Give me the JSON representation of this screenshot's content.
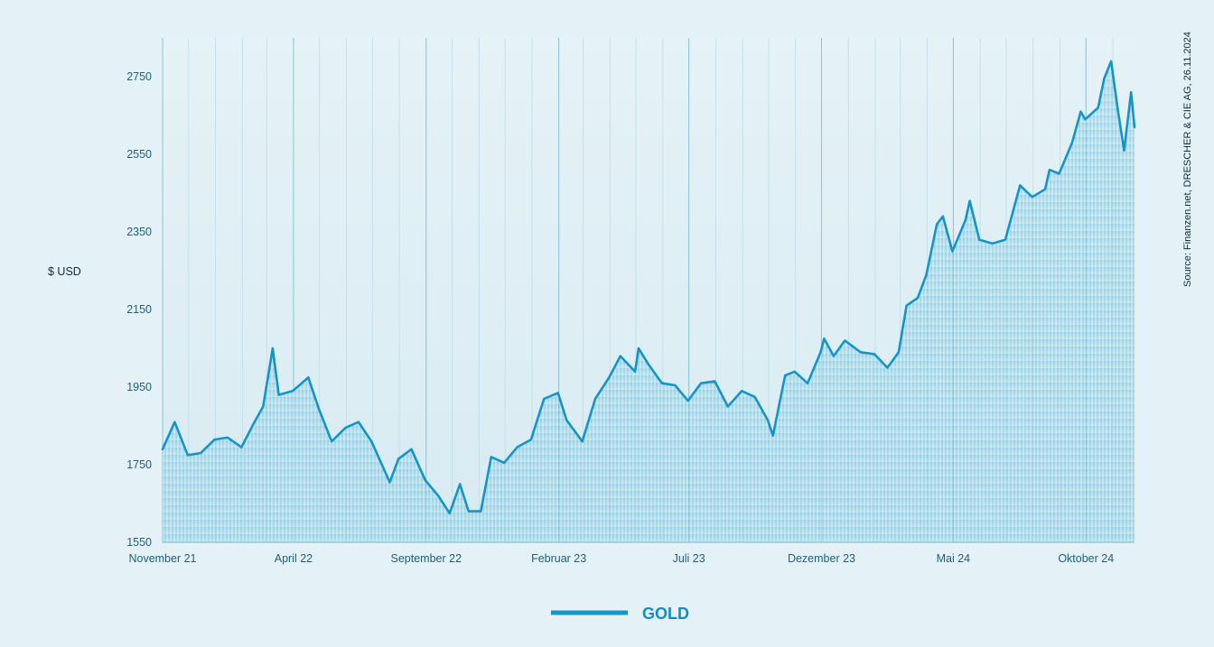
{
  "chart_data": {
    "type": "area",
    "ylabel": "$ USD",
    "source": "Source: Finanzen.net, DRESCHER & CIE AG, 26.11.2024",
    "ylim": [
      1550,
      2850
    ],
    "yticks": [
      1550,
      1750,
      1950,
      2150,
      2350,
      2550,
      2750
    ],
    "xlim": [
      "2021-11-01",
      "2024-11-26"
    ],
    "xticks": [
      {
        "date": "2021-11-01",
        "label": "November 21"
      },
      {
        "date": "2022-04-01",
        "label": "April 22"
      },
      {
        "date": "2022-09-01",
        "label": "September 22"
      },
      {
        "date": "2023-02-01",
        "label": "Februar 23"
      },
      {
        "date": "2023-07-01",
        "label": "Juli 23"
      },
      {
        "date": "2023-12-01",
        "label": "Dezember 23"
      },
      {
        "date": "2024-05-01",
        "label": "Mai 24"
      },
      {
        "date": "2024-10-01",
        "label": "Oktober 24"
      }
    ],
    "series": [
      {
        "name": "GOLD",
        "color": "#1594c9",
        "points": [
          [
            "2021-11-01",
            1790
          ],
          [
            "2021-11-15",
            1860
          ],
          [
            "2021-11-30",
            1775
          ],
          [
            "2021-12-15",
            1780
          ],
          [
            "2021-12-31",
            1815
          ],
          [
            "2022-01-15",
            1820
          ],
          [
            "2022-01-31",
            1795
          ],
          [
            "2022-02-15",
            1860
          ],
          [
            "2022-02-25",
            1900
          ],
          [
            "2022-03-08",
            2050
          ],
          [
            "2022-03-15",
            1930
          ],
          [
            "2022-03-31",
            1940
          ],
          [
            "2022-04-18",
            1975
          ],
          [
            "2022-04-30",
            1895
          ],
          [
            "2022-05-15",
            1810
          ],
          [
            "2022-05-31",
            1845
          ],
          [
            "2022-06-15",
            1860
          ],
          [
            "2022-06-30",
            1810
          ],
          [
            "2022-07-21",
            1705
          ],
          [
            "2022-07-31",
            1765
          ],
          [
            "2022-08-15",
            1790
          ],
          [
            "2022-08-31",
            1710
          ],
          [
            "2022-09-15",
            1670
          ],
          [
            "2022-09-28",
            1625
          ],
          [
            "2022-10-10",
            1700
          ],
          [
            "2022-10-20",
            1630
          ],
          [
            "2022-11-03",
            1630
          ],
          [
            "2022-11-15",
            1770
          ],
          [
            "2022-11-30",
            1755
          ],
          [
            "2022-12-15",
            1795
          ],
          [
            "2022-12-31",
            1815
          ],
          [
            "2023-01-15",
            1920
          ],
          [
            "2023-01-31",
            1935
          ],
          [
            "2023-02-10",
            1865
          ],
          [
            "2023-02-28",
            1810
          ],
          [
            "2023-03-15",
            1920
          ],
          [
            "2023-03-31",
            1975
          ],
          [
            "2023-04-13",
            2030
          ],
          [
            "2023-04-30",
            1990
          ],
          [
            "2023-05-04",
            2050
          ],
          [
            "2023-05-15",
            2010
          ],
          [
            "2023-05-31",
            1960
          ],
          [
            "2023-06-15",
            1955
          ],
          [
            "2023-06-30",
            1915
          ],
          [
            "2023-07-15",
            1960
          ],
          [
            "2023-07-31",
            1965
          ],
          [
            "2023-08-15",
            1900
          ],
          [
            "2023-08-31",
            1940
          ],
          [
            "2023-09-15",
            1925
          ],
          [
            "2023-09-30",
            1865
          ],
          [
            "2023-10-06",
            1825
          ],
          [
            "2023-10-20",
            1980
          ],
          [
            "2023-10-31",
            1990
          ],
          [
            "2023-11-15",
            1960
          ],
          [
            "2023-11-30",
            2040
          ],
          [
            "2023-12-04",
            2075
          ],
          [
            "2023-12-15",
            2030
          ],
          [
            "2023-12-28",
            2070
          ],
          [
            "2024-01-15",
            2040
          ],
          [
            "2024-01-31",
            2035
          ],
          [
            "2024-02-15",
            2000
          ],
          [
            "2024-02-28",
            2040
          ],
          [
            "2024-03-08",
            2160
          ],
          [
            "2024-03-21",
            2180
          ],
          [
            "2024-03-31",
            2240
          ],
          [
            "2024-04-12",
            2370
          ],
          [
            "2024-04-19",
            2390
          ],
          [
            "2024-04-30",
            2300
          ],
          [
            "2024-05-15",
            2380
          ],
          [
            "2024-05-20",
            2430
          ],
          [
            "2024-05-31",
            2330
          ],
          [
            "2024-06-15",
            2320
          ],
          [
            "2024-06-30",
            2330
          ],
          [
            "2024-07-17",
            2470
          ],
          [
            "2024-07-31",
            2440
          ],
          [
            "2024-08-15",
            2460
          ],
          [
            "2024-08-20",
            2510
          ],
          [
            "2024-08-31",
            2500
          ],
          [
            "2024-09-15",
            2580
          ],
          [
            "2024-09-25",
            2660
          ],
          [
            "2024-09-30",
            2640
          ],
          [
            "2024-10-15",
            2670
          ],
          [
            "2024-10-22",
            2745
          ],
          [
            "2024-10-30",
            2790
          ],
          [
            "2024-11-07",
            2660
          ],
          [
            "2024-11-14",
            2560
          ],
          [
            "2024-11-22",
            2710
          ],
          [
            "2024-11-26",
            2620
          ]
        ]
      }
    ],
    "grid": "vertical",
    "legend": "bottom-center"
  }
}
